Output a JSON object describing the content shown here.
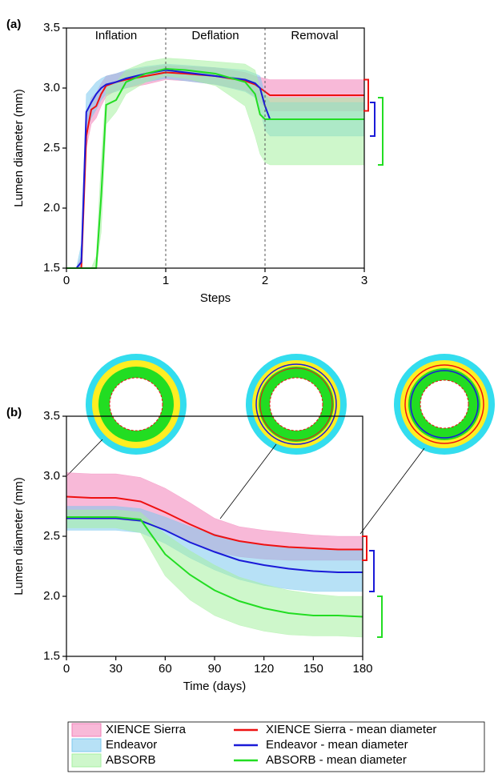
{
  "chart_data": [
    {
      "type": "line",
      "panel_label": "(a)",
      "xlabel": "Steps",
      "ylabel": "Lumen diameter (mm)",
      "annotations": [
        "Inflation",
        "Deflation",
        "Removal"
      ],
      "vlines": [
        1,
        2
      ],
      "xlim": [
        0,
        3
      ],
      "xticks": [
        0,
        1,
        2,
        3
      ],
      "ylim": [
        1.5,
        3.5
      ],
      "yticks": [
        1.5,
        {
          "value": 2,
          "label": "2.0"
        },
        2.5,
        {
          "value": 3,
          "label": "3.0"
        },
        3.5
      ],
      "x": [
        0,
        0.1,
        0.15,
        0.2,
        0.25,
        0.3,
        0.35,
        0.4,
        0.5,
        0.6,
        0.8,
        1,
        1.2,
        1.5,
        1.8,
        1.9,
        1.95,
        2,
        2.05,
        2.5,
        3
      ],
      "bands": [
        {
          "color": "#f27fb8",
          "lower": [
            1.5,
            1.5,
            1.5,
            2.5,
            2.7,
            2.75,
            2.85,
            2.93,
            2.98,
            3.0,
            3.03,
            3.07,
            3.06,
            3.03,
            2.98,
            2.93,
            2.88,
            2.84,
            2.81,
            2.81,
            2.81
          ],
          "upper": [
            1.5,
            1.5,
            1.6,
            2.75,
            2.92,
            2.96,
            3.04,
            3.1,
            3.12,
            3.14,
            3.17,
            3.19,
            3.18,
            3.17,
            3.13,
            3.1,
            3.09,
            3.08,
            3.07,
            3.07,
            3.07
          ]
        },
        {
          "color": "#7cc9ef",
          "lower": [
            1.5,
            1.5,
            1.5,
            2.65,
            2.75,
            2.82,
            2.9,
            2.95,
            2.97,
            3.0,
            3.05,
            3.08,
            3.06,
            3.03,
            2.97,
            2.92,
            2.82,
            2.65,
            2.6,
            2.6,
            2.6
          ],
          "upper": [
            1.5,
            1.5,
            1.7,
            2.95,
            3.0,
            3.05,
            3.08,
            3.1,
            3.12,
            3.15,
            3.18,
            3.2,
            3.19,
            3.17,
            3.15,
            3.12,
            3.1,
            2.95,
            2.88,
            2.88,
            2.88
          ]
        },
        {
          "color": "#a6f0a0",
          "lower": [
            1.5,
            1.5,
            1.5,
            1.5,
            1.5,
            1.5,
            1.8,
            2.7,
            2.8,
            2.95,
            3.05,
            3.1,
            3.08,
            3.02,
            2.85,
            2.6,
            2.45,
            2.38,
            2.36,
            2.36,
            2.36
          ],
          "upper": [
            1.5,
            1.5,
            1.5,
            1.5,
            1.5,
            1.6,
            2.4,
            3.0,
            3.05,
            3.15,
            3.22,
            3.25,
            3.24,
            3.22,
            3.2,
            3.15,
            3.0,
            2.95,
            2.92,
            2.92,
            2.92
          ]
        }
      ],
      "series": [
        {
          "color": "#ee1111",
          "values": [
            1.5,
            1.5,
            1.5,
            2.6,
            2.82,
            2.85,
            2.95,
            3.02,
            3.05,
            3.07,
            3.1,
            3.13,
            3.12,
            3.1,
            3.06,
            3.03,
            3.0,
            2.97,
            2.94,
            2.94,
            2.94
          ]
        },
        {
          "color": "#1a1ad8",
          "values": [
            1.5,
            1.5,
            1.55,
            2.8,
            2.88,
            2.95,
            3.0,
            3.03,
            3.05,
            3.08,
            3.12,
            3.15,
            3.13,
            3.1,
            3.07,
            3.04,
            3.0,
            2.85,
            2.74,
            2.74,
            2.74
          ]
        },
        {
          "color": "#22dd22",
          "values": [
            1.5,
            1.5,
            1.5,
            1.5,
            1.5,
            1.5,
            2.1,
            2.86,
            2.9,
            3.05,
            3.12,
            3.16,
            3.15,
            3.12,
            3.05,
            2.95,
            2.78,
            2.74,
            2.74,
            2.74,
            2.74
          ]
        }
      ]
    },
    {
      "type": "line",
      "panel_label": "(b)",
      "xlabel": "Time (days)",
      "ylabel": "Lumen diameter (mm)",
      "xlim": [
        0,
        180
      ],
      "xticks": [
        0,
        30,
        60,
        90,
        120,
        150,
        180
      ],
      "ylim": [
        1.5,
        3.5
      ],
      "yticks": [
        1.5,
        {
          "value": 2,
          "label": "2.0"
        },
        2.5,
        {
          "value": 3,
          "label": "3.0"
        },
        3.5
      ],
      "x": [
        0,
        15,
        30,
        45,
        60,
        75,
        90,
        105,
        120,
        135,
        150,
        165,
        180
      ],
      "bands": [
        {
          "name": "XIENCE Sierra",
          "color": "#f27fb8",
          "lower": [
            2.65,
            2.64,
            2.64,
            2.62,
            2.55,
            2.45,
            2.37,
            2.33,
            2.31,
            2.3,
            2.3,
            2.3,
            2.3
          ],
          "upper": [
            3.03,
            3.02,
            3.02,
            2.99,
            2.9,
            2.78,
            2.65,
            2.58,
            2.55,
            2.53,
            2.51,
            2.5,
            2.5
          ]
        },
        {
          "name": "Endeavor",
          "color": "#7cc9ef",
          "lower": [
            2.55,
            2.55,
            2.55,
            2.53,
            2.44,
            2.32,
            2.22,
            2.14,
            2.09,
            2.06,
            2.04,
            2.04,
            2.04
          ],
          "upper": [
            2.75,
            2.75,
            2.75,
            2.73,
            2.66,
            2.58,
            2.52,
            2.46,
            2.43,
            2.41,
            2.39,
            2.38,
            2.38
          ]
        },
        {
          "name": "ABSORB",
          "color": "#a6f0a0",
          "lower": [
            2.57,
            2.57,
            2.57,
            2.53,
            2.17,
            1.97,
            1.84,
            1.76,
            1.71,
            1.68,
            1.67,
            1.67,
            1.66
          ],
          "upper": [
            2.72,
            2.72,
            2.72,
            2.7,
            2.52,
            2.38,
            2.26,
            2.16,
            2.1,
            2.05,
            2.02,
            2.0,
            2.0
          ]
        }
      ],
      "series": [
        {
          "name": "XIENCE Sierra - mean diameter",
          "color": "#ee1111",
          "values": [
            2.83,
            2.82,
            2.82,
            2.79,
            2.7,
            2.6,
            2.51,
            2.46,
            2.43,
            2.41,
            2.4,
            2.39,
            2.39
          ]
        },
        {
          "name": "Endeavor - mean diameter",
          "color": "#1a1ad8",
          "values": [
            2.65,
            2.65,
            2.65,
            2.63,
            2.55,
            2.45,
            2.37,
            2.3,
            2.26,
            2.23,
            2.21,
            2.2,
            2.2
          ]
        },
        {
          "name": "ABSORB - mean diameter",
          "color": "#22dd22",
          "values": [
            2.66,
            2.66,
            2.66,
            2.64,
            2.35,
            2.18,
            2.05,
            1.96,
            1.9,
            1.86,
            1.84,
            1.84,
            1.83
          ]
        }
      ]
    }
  ]
}
